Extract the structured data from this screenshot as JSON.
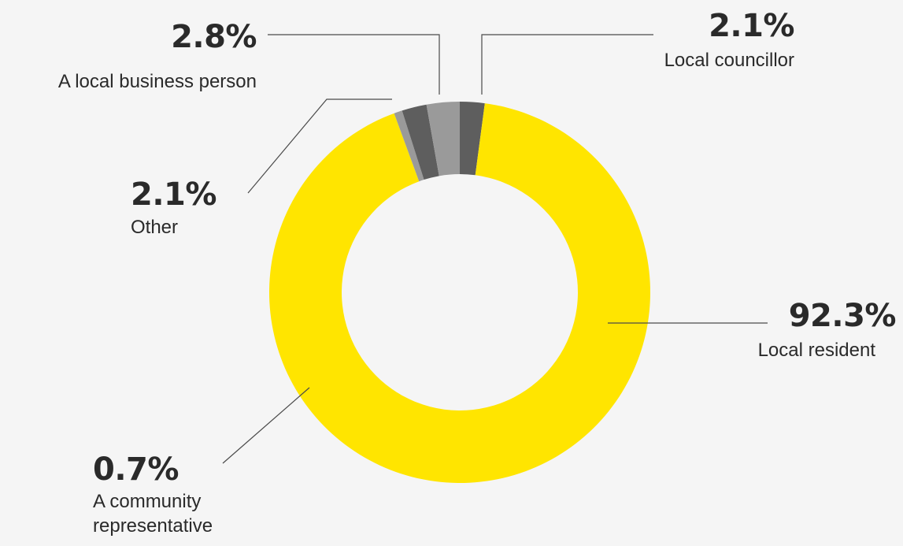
{
  "chart_data": {
    "type": "pie",
    "donut": true,
    "categories": [
      "Local councillor",
      "Local resident",
      "A community representative",
      "Other",
      "A local business person"
    ],
    "values": [
      2.1,
      92.3,
      0.7,
      2.1,
      2.8
    ],
    "value_labels": [
      "2.1%",
      "92.3%",
      "0.7%",
      "2.1%",
      "2.8%"
    ],
    "colors": [
      "#5e5e5e",
      "#ffe500",
      "#9a9a9a",
      "#5e5e5e",
      "#9a9a9a"
    ],
    "title": "",
    "legend": "none"
  }
}
